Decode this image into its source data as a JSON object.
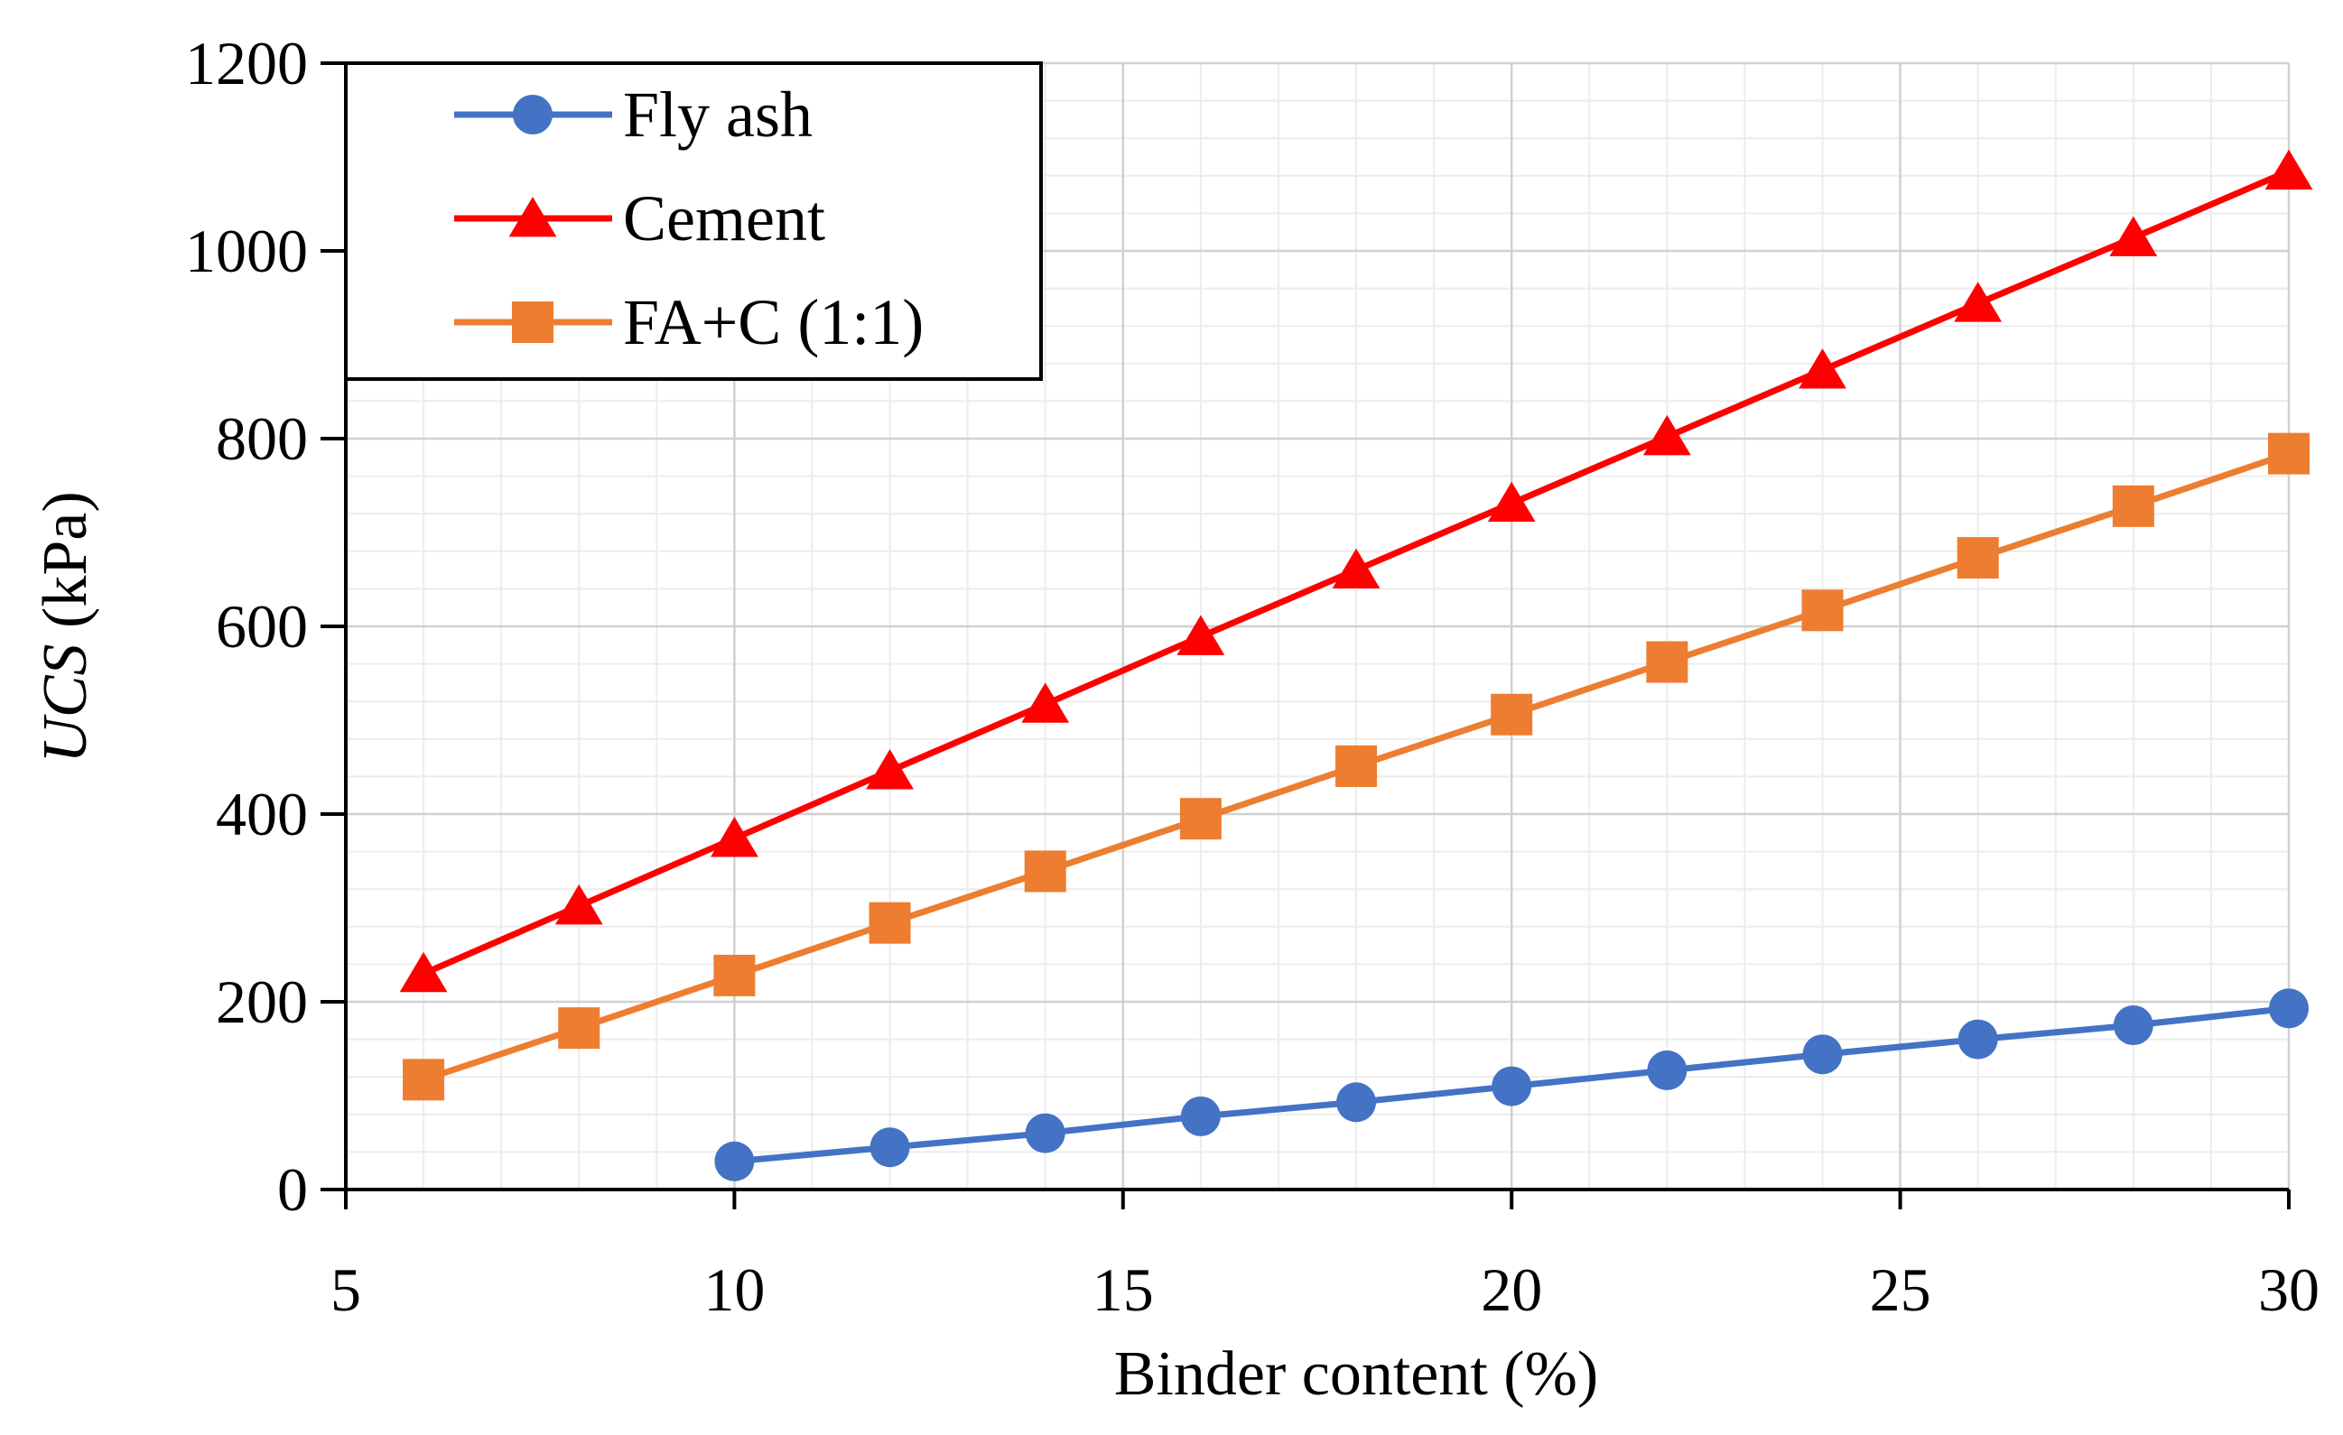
{
  "chart_data": {
    "type": "line",
    "title": "",
    "xlabel": "Binder content (%)",
    "ylabel_italic": "UCS",
    "ylabel_unit": " (kPa)",
    "xlim": [
      5,
      30
    ],
    "ylim": [
      0,
      1200
    ],
    "xticks": [
      5,
      10,
      15,
      20,
      25,
      30
    ],
    "yticks": [
      0,
      200,
      400,
      600,
      800,
      1000,
      1200
    ],
    "x_minor_step": 1,
    "y_minor_step": 40,
    "grid": true,
    "legend_position": "top-left",
    "series": [
      {
        "name": "Fly ash",
        "marker": "circle",
        "color": "#4472C4",
        "x": [
          10,
          12,
          14,
          16,
          18,
          20,
          22,
          24,
          26,
          28,
          30
        ],
        "y": [
          30,
          45,
          60,
          78,
          93,
          110,
          127,
          144,
          160,
          175,
          193
        ]
      },
      {
        "name": "Cement",
        "marker": "triangle",
        "color": "#FF0000",
        "x": [
          6,
          8,
          10,
          12,
          14,
          16,
          18,
          20,
          22,
          24,
          26,
          28,
          30
        ],
        "y": [
          230,
          302,
          374,
          446,
          517,
          589,
          660,
          731,
          802,
          873,
          944,
          1014,
          1085
        ]
      },
      {
        "name": "FA+C (1:1)",
        "marker": "square",
        "color": "#ED7D31",
        "x": [
          6,
          8,
          10,
          12,
          14,
          16,
          18,
          20,
          22,
          24,
          26,
          28,
          30
        ],
        "y": [
          117,
          172,
          228,
          284,
          339,
          395,
          451,
          506,
          562,
          617,
          673,
          728,
          784
        ]
      }
    ]
  }
}
